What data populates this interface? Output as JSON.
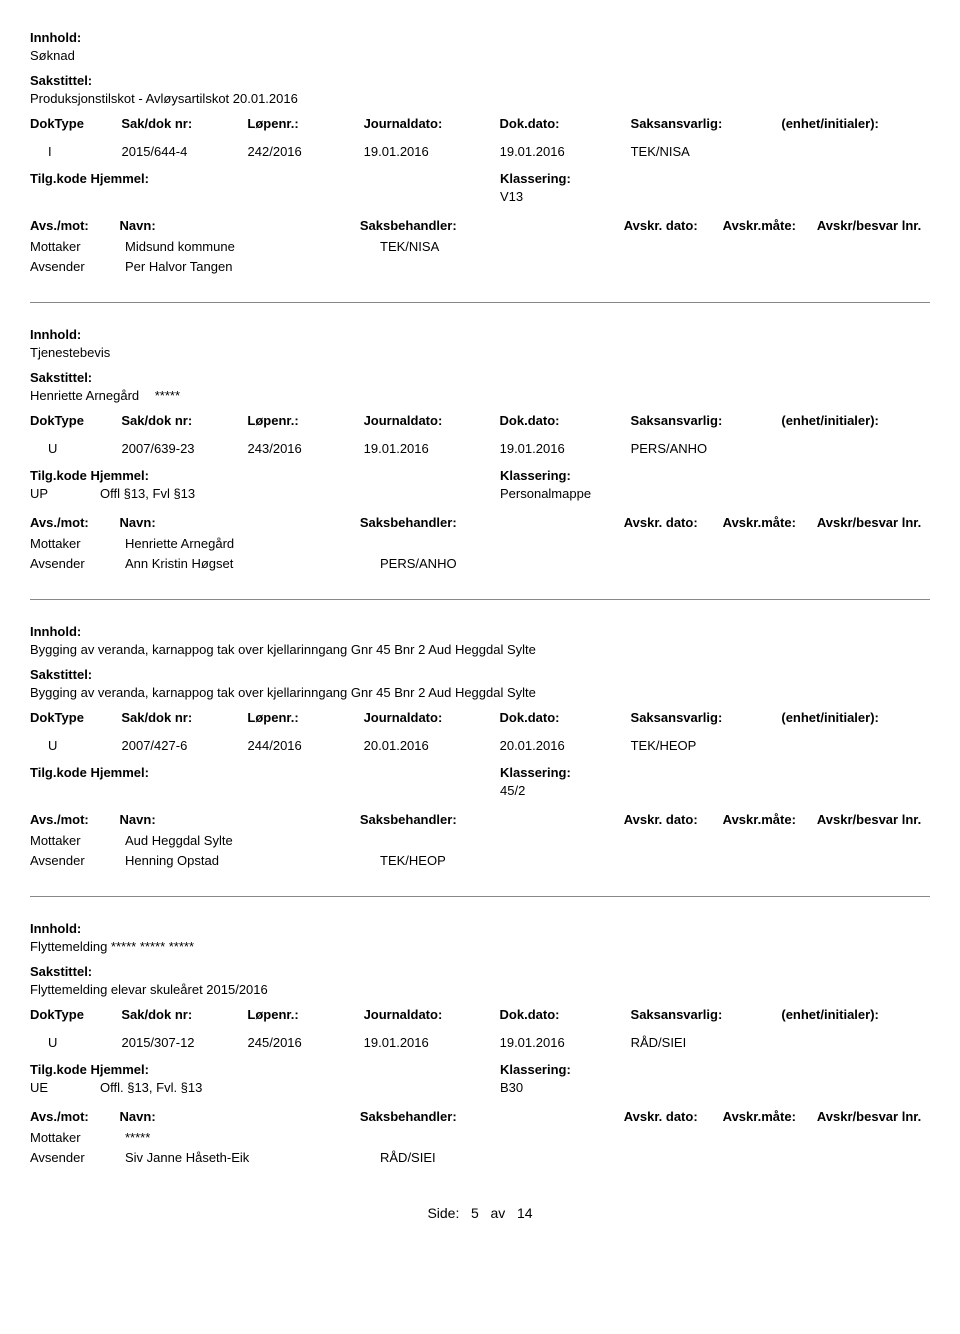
{
  "labels": {
    "innhold": "Innhold:",
    "sakstittel": "Sakstittel:",
    "doktype": "DokType",
    "sakdok": "Sak/dok nr:",
    "lopenr": "Løpenr.:",
    "journaldato": "Journaldato:",
    "dokdato": "Dok.dato:",
    "saksansvarlig": "Saksansvarlig:",
    "enhet": "(enhet/initialer):",
    "tilgkode": "Tilg.kode",
    "hjemmel": "Hjemmel:",
    "klassering": "Klassering:",
    "avsmot": "Avs./mot:",
    "navn": "Navn:",
    "saksbehandler": "Saksbehandler:",
    "avskrdato": "Avskr. dato:",
    "avskrmate": "Avskr.måte:",
    "avskrbesvar": "Avskr/besvar lnr.",
    "mottaker": "Mottaker",
    "avsender": "Avsender"
  },
  "entries": [
    {
      "innhold": "Søknad",
      "sakstittel": "Produksjonstilskot - Avløysartilskot 20.01.2016",
      "sakstittel_masked": "",
      "doktype": "I",
      "sakdok": "2015/644-4",
      "lopenr": "242/2016",
      "journaldato": "19.01.2016",
      "dokdato": "19.01.2016",
      "saksansvarlig": "TEK/NISA",
      "tilgkode": "",
      "hjemmel": "",
      "klassering": "V13",
      "mottaker": "Midsund kommune",
      "mottaker_handler": "TEK/NISA",
      "avsender": "Per Halvor Tangen",
      "avsender_handler": ""
    },
    {
      "innhold": "Tjenestebevis",
      "sakstittel": "Henriette Arnegård",
      "sakstittel_masked": "*****",
      "doktype": "U",
      "sakdok": "2007/639-23",
      "lopenr": "243/2016",
      "journaldato": "19.01.2016",
      "dokdato": "19.01.2016",
      "saksansvarlig": "PERS/ANHO",
      "tilgkode": "UP",
      "hjemmel": "Offl §13, Fvl §13",
      "klassering": "Personalmappe",
      "mottaker": "Henriette Arnegård",
      "mottaker_handler": "",
      "avsender": "Ann Kristin Høgset",
      "avsender_handler": "PERS/ANHO"
    },
    {
      "innhold": "Bygging av veranda, karnappog tak over kjellarinngang  Gnr 45 Bnr 2   Aud Heggdal Sylte",
      "sakstittel": "Bygging av veranda, karnappog tak over kjellarinngang  Gnr 45 Bnr 2   Aud Heggdal Sylte",
      "sakstittel_masked": "",
      "doktype": "U",
      "sakdok": "2007/427-6",
      "lopenr": "244/2016",
      "journaldato": "20.01.2016",
      "dokdato": "20.01.2016",
      "saksansvarlig": "TEK/HEOP",
      "tilgkode": "",
      "hjemmel": "",
      "klassering": "45/2",
      "mottaker": "Aud Heggdal Sylte",
      "mottaker_handler": "",
      "avsender": "Henning Opstad",
      "avsender_handler": "TEK/HEOP"
    },
    {
      "innhold": "Flyttemelding ***** ***** *****",
      "sakstittel": "Flyttemelding elevar skuleåret 2015/2016",
      "sakstittel_masked": "",
      "doktype": "U",
      "sakdok": "2015/307-12",
      "lopenr": "245/2016",
      "journaldato": "19.01.2016",
      "dokdato": "19.01.2016",
      "saksansvarlig": "RÅD/SIEI",
      "tilgkode": "UE",
      "hjemmel": "Offl. §13, Fvl. §13",
      "klassering": "B30",
      "mottaker": "*****",
      "mottaker_handler": "",
      "avsender": "Siv Janne Håseth-Eik",
      "avsender_handler": "RÅD/SIEI"
    }
  ],
  "footer": {
    "prefix": "Side:",
    "page": "5",
    "sep": "av",
    "total": "14"
  }
}
